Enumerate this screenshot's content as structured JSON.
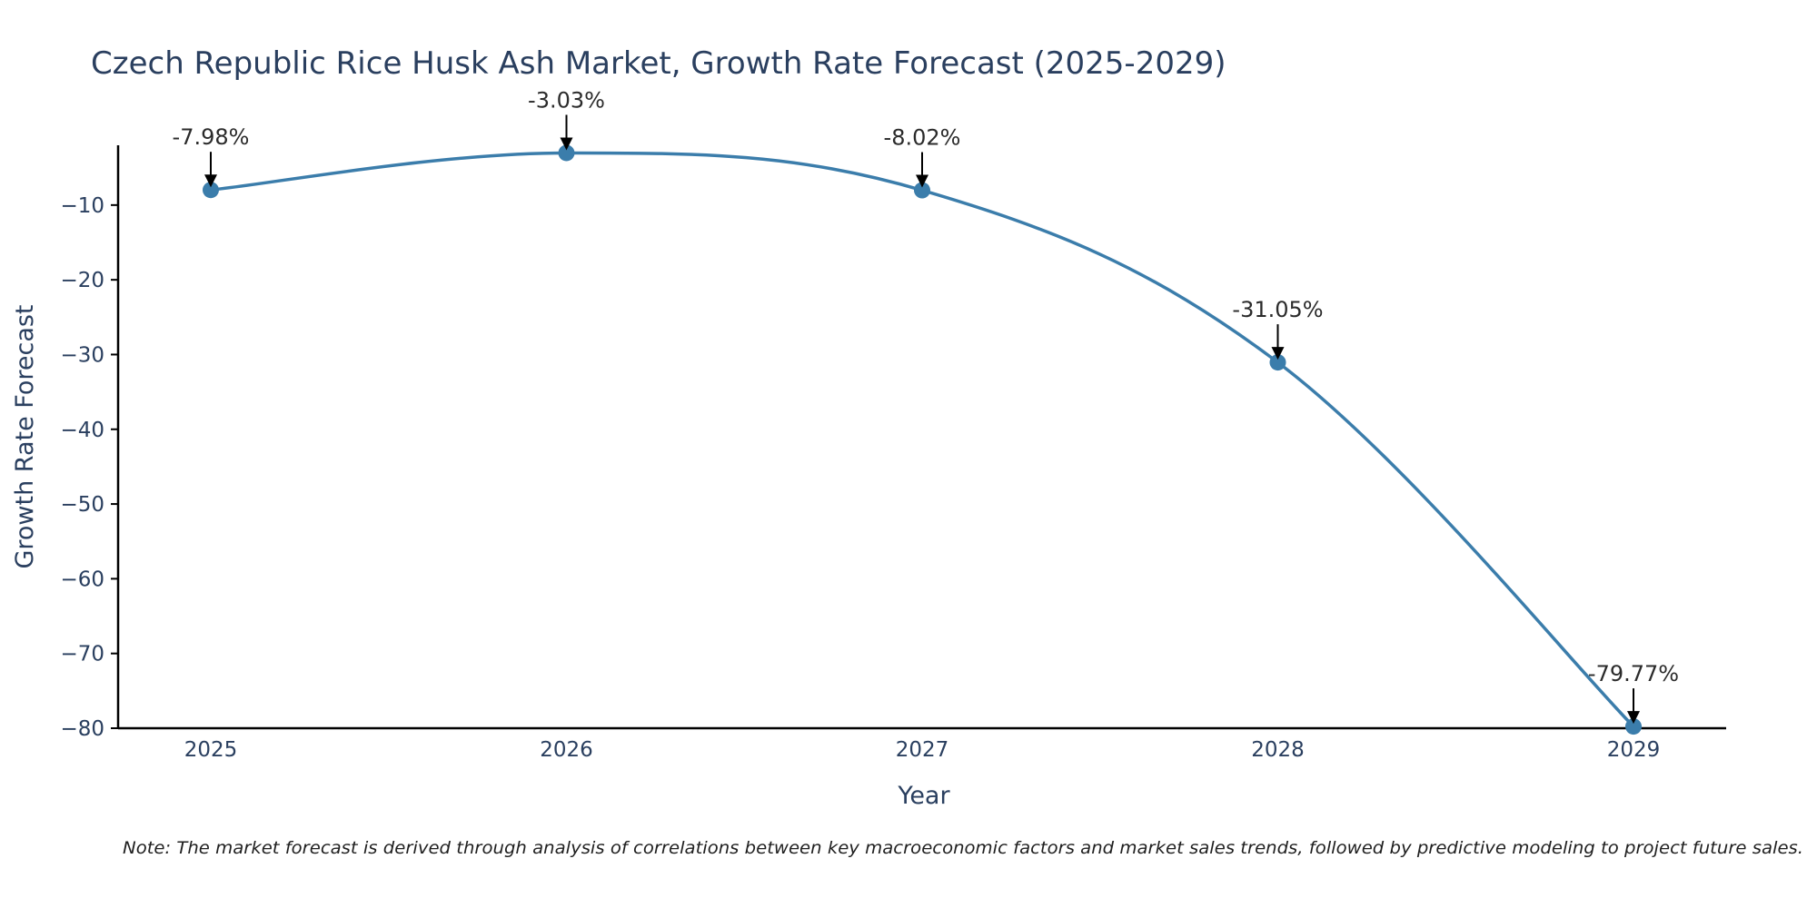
{
  "chart_data": {
    "type": "line",
    "title": "Czech Republic Rice Husk Ash Market, Growth Rate Forecast (2025-2029)",
    "xlabel": "Year",
    "ylabel": "Growth Rate Forecast",
    "categories": [
      "2025",
      "2026",
      "2027",
      "2028",
      "2029"
    ],
    "series": [
      {
        "name": "Growth Rate Forecast",
        "values": [
          -7.98,
          -3.03,
          -8.02,
          -31.05,
          -79.77
        ],
        "labels": [
          "-7.98%",
          "-3.03%",
          "-8.02%",
          "-31.05%",
          "-79.77%"
        ]
      }
    ],
    "ylim": [
      -80,
      -2
    ],
    "yticks": [
      -10,
      -20,
      -30,
      -40,
      -50,
      -60,
      -70,
      -80
    ],
    "ytick_labels": [
      "−10",
      "−20",
      "−30",
      "−40",
      "−50",
      "−60",
      "−70",
      "−80"
    ],
    "grid": false,
    "note": "Note: The market forecast is derived through analysis of correlations between key macroeconomic factors and market sales trends, followed by predictive modeling to project future sales.",
    "colors": {
      "line": "#3b7dab",
      "marker": "#3b7dab",
      "text": "#2a3f5f",
      "annotation": "#2b2b2b",
      "axis": "#000000"
    }
  }
}
